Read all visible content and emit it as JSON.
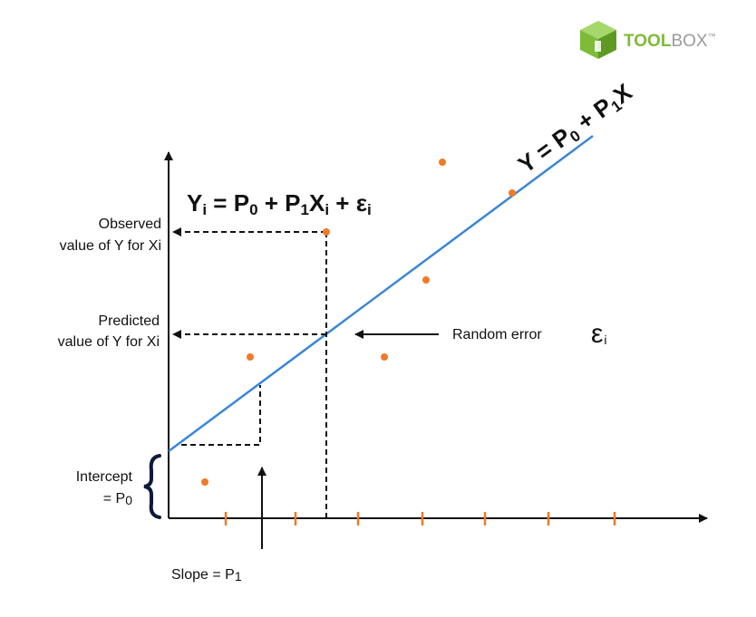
{
  "logo": {
    "text_bold": "TOOL",
    "text_light": "BOX",
    "trademark": "™",
    "color_green": "#7dbb38",
    "color_gray": "#9a9a9a"
  },
  "equations": {
    "sample": {
      "y": "Y",
      "y_sub": "i",
      "eq": " = ",
      "b0": "P",
      "b0_sub": "0",
      "plus": " + ",
      "b1": "P",
      "b1_sub": "1",
      "x": "X",
      "x_sub": "i",
      "plus2": " + ",
      "err": "ε",
      "err_sub": "i"
    },
    "line": {
      "prefix": "Y = P",
      "b0_sub": "0",
      "mid": " + P",
      "b1_sub": "1",
      "suffix": "X"
    }
  },
  "labels": {
    "observed_line1": "Observed",
    "observed_line2": "value of Y for Xi",
    "predicted_line1": "Predicted",
    "predicted_line2": "value of Y for Xi",
    "random_error": "Random error",
    "random_error_symbol": "ε",
    "random_error_sub": "i",
    "intercept_line1": "Intercept",
    "intercept_line2_prefix": "= P",
    "intercept_line2_sub": "0",
    "slope_prefix": "Slope = P",
    "slope_sub": "1"
  },
  "colors": {
    "regression_line": "#3a86d8",
    "points": "#f07a26",
    "ticks": "#f07a26",
    "axes": "#111111",
    "brace": "#0d1a3a"
  }
}
